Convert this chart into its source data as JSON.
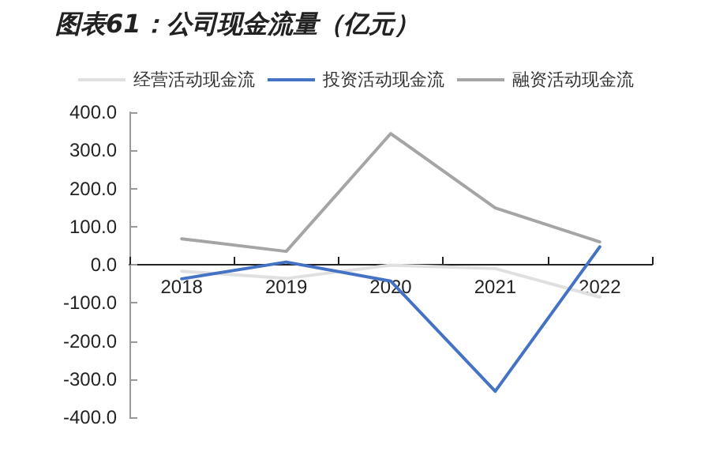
{
  "chart_data": {
    "type": "line",
    "title": "图表61：公司现金流量（亿元）",
    "categories": [
      "2018",
      "2019",
      "2020",
      "2021",
      "2022"
    ],
    "series": [
      {
        "name": "经营活动现金流",
        "color": "#e0e0e0",
        "values": [
          -17,
          -36,
          -1,
          -10,
          -85
        ]
      },
      {
        "name": "投资活动现金流",
        "color": "#4472c4",
        "values": [
          -37,
          7,
          -43,
          -332,
          47
        ]
      },
      {
        "name": "融资活动现金流",
        "color": "#a5a5a5",
        "values": [
          68,
          35,
          344,
          149,
          60
        ]
      }
    ],
    "ylim": [
      -400,
      400
    ],
    "yticks": [
      {
        "value": -400,
        "label": "-400.0"
      },
      {
        "value": -300,
        "label": "-300.0"
      },
      {
        "value": -200,
        "label": "-200.0"
      },
      {
        "value": -100,
        "label": "-100.0"
      },
      {
        "value": 0,
        "label": "0.0"
      },
      {
        "value": 100,
        "label": "100.0"
      },
      {
        "value": 200,
        "label": "200.0"
      },
      {
        "value": 300,
        "label": "300.0"
      },
      {
        "value": 400,
        "label": "400.0"
      }
    ],
    "legend": "top",
    "marker": "none",
    "line_style": "solid"
  }
}
